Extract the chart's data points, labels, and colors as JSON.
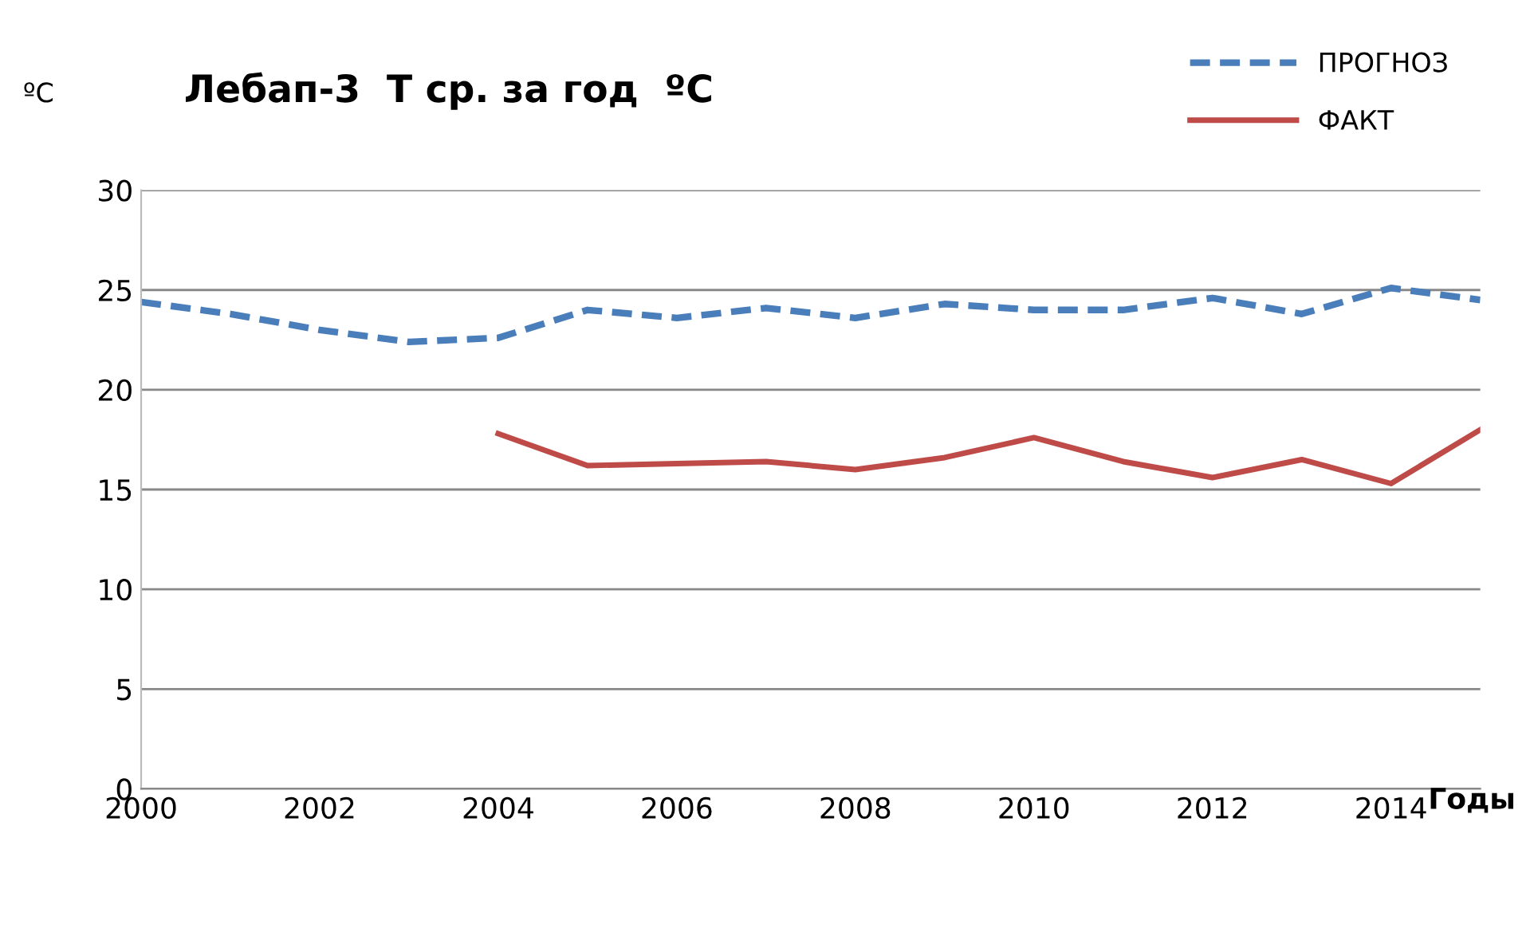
{
  "chart_data": {
    "type": "line",
    "title": "Лебап-3  Т ср. за год  ºC",
    "ylabel": "ºC",
    "xlabel": "Годы",
    "xlim": [
      2000,
      2015
    ],
    "xticks": [
      2000,
      2002,
      2004,
      2006,
      2008,
      2010,
      2012,
      2014
    ],
    "ylim": [
      0,
      30
    ],
    "yticks": [
      0,
      5,
      10,
      15,
      20,
      25,
      30
    ],
    "grid": "y",
    "legend": "top right",
    "marker": "none",
    "series": [
      {
        "name": "ПРОГНОЗ",
        "color": "#4a7ebb",
        "line_style": "dashed",
        "x": [
          2000,
          2001,
          2002,
          2003,
          2004,
          2005,
          2006,
          2007,
          2008,
          2009,
          2010,
          2011,
          2012,
          2013,
          2014,
          2015
        ],
        "values": [
          24.4,
          23.8,
          23.0,
          22.4,
          22.6,
          24.0,
          23.6,
          24.1,
          23.6,
          24.3,
          24.0,
          24.0,
          24.6,
          23.8,
          25.1,
          24.5
        ]
      },
      {
        "name": "ФАКТ",
        "color": "#be4b48",
        "line_style": "solid",
        "x": [
          2004,
          2005,
          2006,
          2007,
          2008,
          2009,
          2010,
          2011,
          2012,
          2013,
          2014,
          2015
        ],
        "values": [
          17.8,
          16.2,
          16.3,
          16.4,
          16.0,
          16.6,
          17.6,
          16.4,
          15.6,
          16.5,
          15.3,
          18.0
        ]
      }
    ]
  }
}
